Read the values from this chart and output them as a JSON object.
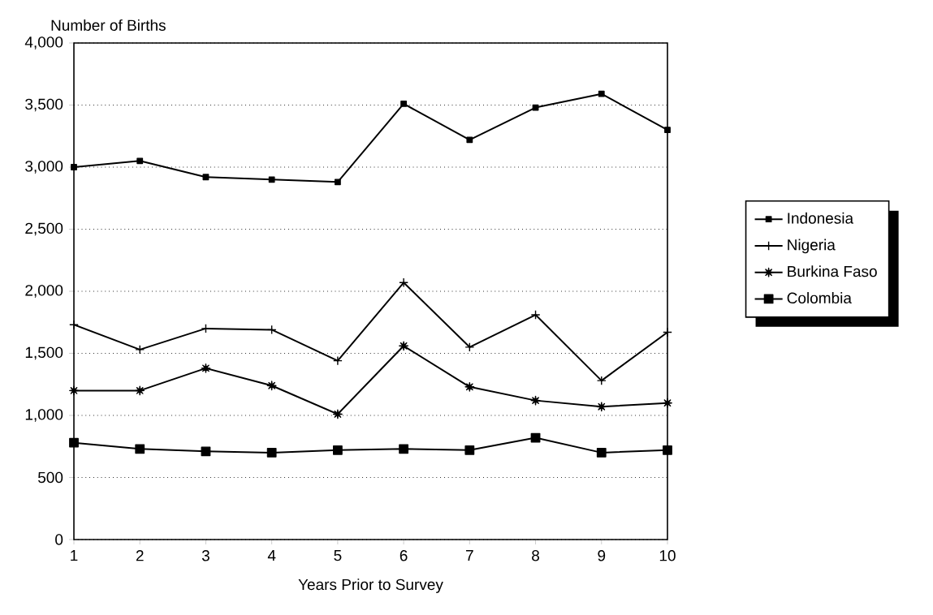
{
  "chart_data": {
    "type": "line",
    "xlabel": "Years Prior to Survey",
    "ylabel": "Number of Births",
    "x": [
      1,
      2,
      3,
      4,
      5,
      6,
      7,
      8,
      9,
      10
    ],
    "series": [
      {
        "name": "Indonesia",
        "color": "#000000",
        "marker": "square",
        "values": [
          3000,
          3050,
          2920,
          2900,
          2880,
          3510,
          3220,
          3480,
          3590,
          3300
        ]
      },
      {
        "name": "Nigeria",
        "color": "#000000",
        "marker": "cross",
        "values": [
          1730,
          1530,
          1700,
          1690,
          1440,
          2070,
          1550,
          1810,
          1280,
          1670
        ]
      },
      {
        "name": "Burkina Faso",
        "color": "#000000",
        "marker": "star",
        "values": [
          1200,
          1200,
          1380,
          1240,
          1010,
          1560,
          1230,
          1120,
          1070,
          1100
        ]
      },
      {
        "name": "Colombia",
        "color": "#000000",
        "marker": "square",
        "values": [
          780,
          730,
          710,
          700,
          720,
          730,
          720,
          820,
          700,
          720
        ]
      }
    ],
    "xlim": [
      1,
      10
    ],
    "xticks": [
      1,
      2,
      3,
      4,
      5,
      6,
      7,
      8,
      9,
      10
    ],
    "ylim": [
      0,
      4000
    ],
    "yticks": [
      0,
      500,
      {
        "value": 1000,
        "label": "1,000"
      },
      {
        "value": 1500,
        "label": "1,500"
      },
      {
        "value": 2000,
        "label": "2,000"
      },
      {
        "value": 2500,
        "label": "2,500"
      },
      {
        "value": 3000,
        "label": "3,000"
      },
      {
        "value": 3500,
        "label": "3,500"
      },
      {
        "value": 4000,
        "label": "4,000"
      }
    ],
    "grid": "y",
    "legend": "right",
    "line_style": "solid"
  }
}
